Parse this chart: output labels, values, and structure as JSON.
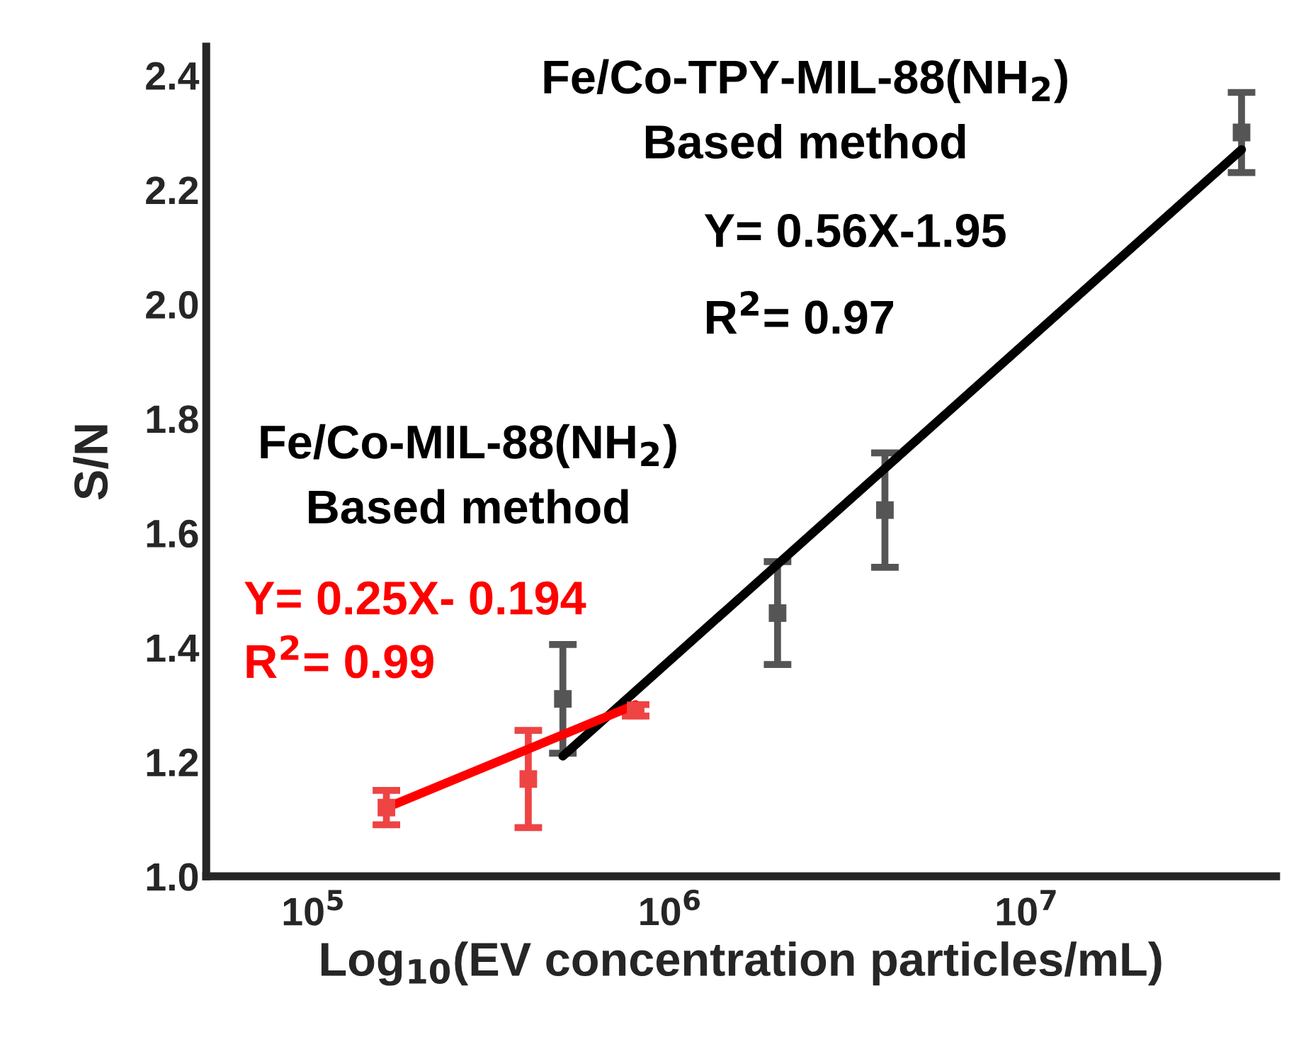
{
  "chart_data": {
    "type": "scatter",
    "xlabel": "Log$_{10}$(EV concentration particles/mL)",
    "ylabel": "S/N",
    "log": "x",
    "xlim": [
      50000,
      50000000
    ],
    "ylim": [
      1.0,
      2.45
    ],
    "xticks": [
      {
        "value": 100000,
        "label": "10$^{5}$"
      },
      {
        "value": 1000000,
        "label": "10$^{6}$"
      },
      {
        "value": 10000000,
        "label": "10$^{7}$"
      }
    ],
    "yticks": [
      {
        "value": 1.0,
        "label": "1.0"
      },
      {
        "value": 1.2,
        "label": "1.2"
      },
      {
        "value": 1.4,
        "label": "1.4"
      },
      {
        "value": 1.6,
        "label": "1.6"
      },
      {
        "value": 1.8,
        "label": "1.8"
      },
      {
        "value": 2.0,
        "label": "2.0"
      },
      {
        "value": 2.2,
        "label": "2.2"
      },
      {
        "value": 2.4,
        "label": "2.4"
      }
    ],
    "grid": false,
    "legend": false,
    "marker": "square",
    "series": [
      {
        "type": "line",
        "color": "#000000",
        "marker": "none",
        "x": [
          500000,
          40000000
        ],
        "values": [
          1.21,
          2.27
        ]
      },
      {
        "type": "line",
        "color": "#ff0000",
        "marker": "none",
        "x": [
          160000,
          800000
        ],
        "values": [
          1.12,
          1.3
        ]
      },
      {
        "color": "#555555",
        "x": [
          500000,
          2000000,
          4000000,
          40000000
        ],
        "values": [
          1.31,
          1.46,
          1.64,
          2.3
        ],
        "errors": [
          0.095,
          0.09,
          0.1,
          0.07
        ]
      },
      {
        "color": "#ee4444",
        "x": [
          160000,
          400000,
          800000
        ],
        "values": [
          1.12,
          1.17,
          1.29
        ],
        "errors": [
          0.03,
          0.085,
          0.01
        ]
      }
    ],
    "annotations": [
      "Fe/Co-TPY-MIL-88(NH$_{2}$)\nBased method",
      "Y= 0.56X-1.95",
      "R$^{2}$= 0.97",
      "Fe/Co-MIL-88(NH$_{2}$)\nBased method",
      "Y= 0.25X- 0.194",
      "R$^{2}$= 0.99"
    ]
  }
}
